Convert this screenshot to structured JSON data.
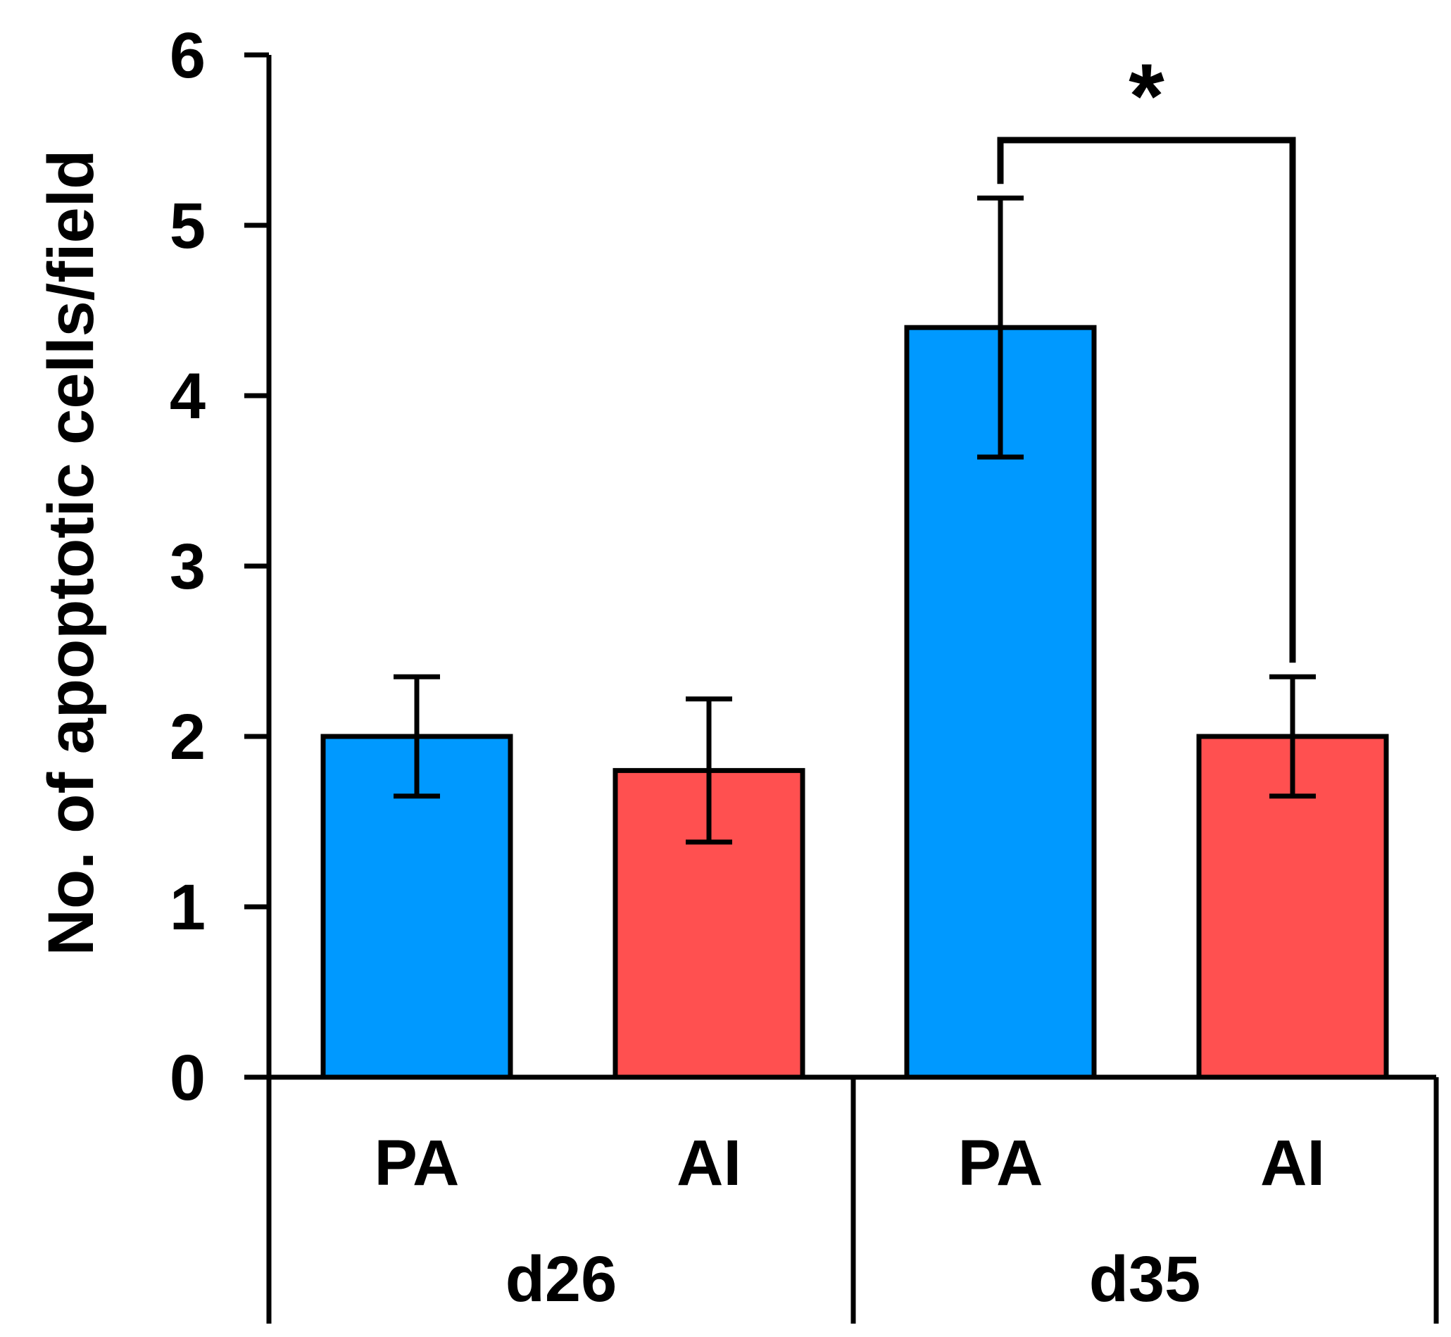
{
  "chart_data": {
    "type": "bar",
    "title": "",
    "xlabel": "",
    "ylabel": "No. of apoptotic cells/field",
    "ylim": [
      0,
      6
    ],
    "yticks": [
      0,
      1,
      2,
      3,
      4,
      5,
      6
    ],
    "grid": false,
    "groups": [
      {
        "label": "d26",
        "bars": [
          {
            "category": "PA",
            "value": 2.0,
            "error": 0.35,
            "color": "#0099FF"
          },
          {
            "category": "AI",
            "value": 1.8,
            "error": 0.42,
            "color": "#FF5050"
          }
        ]
      },
      {
        "label": "d35",
        "bars": [
          {
            "category": "PA",
            "value": 4.4,
            "error": 0.76,
            "color": "#0099FF"
          },
          {
            "category": "AI",
            "value": 2.0,
            "error": 0.35,
            "color": "#FF5050"
          }
        ]
      }
    ],
    "annotations": [
      {
        "type": "significance",
        "text": "*",
        "group": "d35",
        "from": "PA",
        "to": "AI",
        "level": 5.5
      }
    ]
  }
}
